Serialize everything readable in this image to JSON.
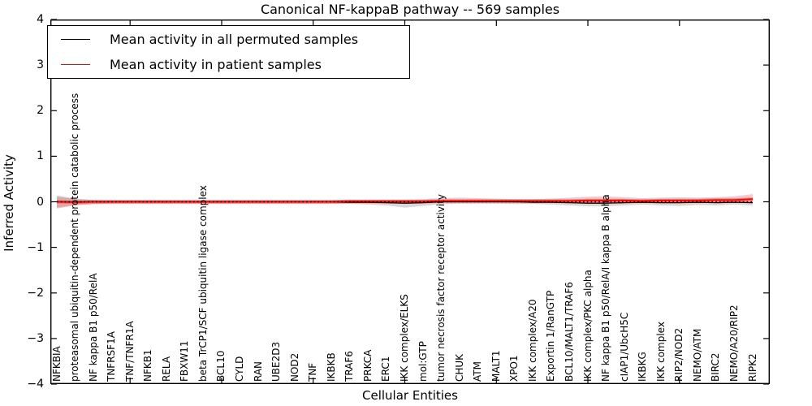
{
  "title": "Canonical NF-kappaB pathway -- 569 samples",
  "axes": {
    "ylabel": "Inferred Activity",
    "xlabel": "Cellular Entities",
    "ytick_labels": [
      "−4",
      "−3",
      "−2",
      "−1",
      "0",
      "1",
      "2",
      "3",
      "4"
    ],
    "ytick_values": [
      -4,
      -3,
      -2,
      -1,
      0,
      1,
      2,
      3,
      4
    ]
  },
  "legend": {
    "items": [
      {
        "label": "Mean activity in all permuted samples",
        "color": "#000000"
      },
      {
        "label": "Mean activity in patient samples",
        "color": "#ff0000"
      }
    ]
  },
  "chart_data": {
    "type": "line",
    "title": "Canonical NF-kappaB pathway -- 569 samples",
    "xlabel": "Cellular Entities",
    "ylabel": "Inferred Activity",
    "ylim": [
      -4,
      4
    ],
    "grid": false,
    "legend_position": "upper left",
    "categories": [
      "NFKBIA",
      "proteasomal ubiquitin-dependent protein catabolic process",
      "NF kappa B1 p50/RelA",
      "TNFRSF1A",
      "TNF/TNFR1A",
      "NFKB1",
      "RELA",
      "FBXW11",
      "beta TrCP1/SCF ubiquitin ligase complex",
      "BCL10",
      "CYLD",
      "RAN",
      "UBE2D3",
      "NOD2",
      "TNF",
      "IKBKB",
      "TRAF6",
      "PRKCA",
      "ERC1",
      "IKK complex/ELKS",
      "mol:GTP",
      "tumor necrosis factor receptor activity",
      "CHUK",
      "ATM",
      "MALT1",
      "XPO1",
      "IKK complex/A20",
      "Exportin 1/RanGTP",
      "BCL10/MALT1/TRAF6",
      "IKK complex/PKC alpha",
      "NF kappa B1 p50/RelA/I kappa B alpha",
      "cIAP1/UbcH5C",
      "IKBKG",
      "IKK complex",
      "RIP2/NOD2",
      "NEMO/ATM",
      "BIRC2",
      "NEMO/A20/RIP2",
      "RIPK2"
    ],
    "xtick_indices": [
      4,
      9,
      14,
      19,
      24,
      29,
      34
    ],
    "zero_line": {
      "y": 0,
      "style": "dotted",
      "color": "#000000"
    },
    "series": [
      {
        "name": "Mean activity in all permuted samples",
        "color": "#000000",
        "band_color": "rgba(110,110,110,0.28)",
        "values": [
          0,
          0,
          0,
          0,
          0,
          0,
          0,
          0,
          0,
          0,
          0,
          0,
          0,
          0,
          0,
          0,
          -0.01,
          -0.01,
          -0.02,
          -0.03,
          -0.02,
          0,
          0,
          0,
          0,
          0,
          -0.01,
          -0.01,
          -0.02,
          -0.03,
          -0.03,
          -0.02,
          -0.01,
          -0.02,
          -0.02,
          -0.01,
          -0.02,
          -0.01,
          -0.02
        ],
        "band_upper": [
          0.14,
          0.07,
          0.04,
          0.03,
          0.03,
          0.03,
          0.03,
          0.03,
          0.03,
          0.03,
          0.03,
          0.03,
          0.03,
          0.03,
          0.03,
          0.03,
          0.03,
          0.03,
          0.03,
          0.03,
          0.03,
          0.03,
          0.03,
          0.03,
          0.03,
          0.03,
          0.03,
          0.03,
          0.03,
          0.03,
          0.03,
          0.03,
          0.03,
          0.03,
          0.03,
          0.03,
          0.03,
          0.03,
          0.03
        ],
        "band_lower": [
          -0.15,
          -0.08,
          -0.05,
          -0.04,
          -0.04,
          -0.04,
          -0.04,
          -0.04,
          -0.04,
          -0.04,
          -0.04,
          -0.04,
          -0.04,
          -0.04,
          -0.04,
          -0.04,
          -0.05,
          -0.06,
          -0.08,
          -0.13,
          -0.09,
          -0.05,
          -0.04,
          -0.04,
          -0.04,
          -0.05,
          -0.05,
          -0.06,
          -0.08,
          -0.1,
          -0.1,
          -0.08,
          -0.06,
          -0.08,
          -0.09,
          -0.07,
          -0.08,
          -0.06,
          -0.08
        ]
      },
      {
        "name": "Mean activity in patient samples",
        "color": "#ff0000",
        "band_color": "rgba(255,0,0,0.22)",
        "inner_band_halfwidth": 0.035,
        "inner_band_color": "rgba(255,0,0,0.35)",
        "values": [
          0,
          -0.01,
          0,
          0,
          0,
          0,
          0,
          0,
          0,
          0,
          0,
          0,
          0,
          0,
          0,
          0,
          0.01,
          0.01,
          0.01,
          0.01,
          0.01,
          0.02,
          0.02,
          0.02,
          0.02,
          0.02,
          0.02,
          0.02,
          0.02,
          0.03,
          0.03,
          0.03,
          0.02,
          0.03,
          0.03,
          0.03,
          0.04,
          0.04,
          0.06
        ],
        "band_upper": [
          0.11,
          0.06,
          0.04,
          0.04,
          0.04,
          0.04,
          0.04,
          0.04,
          0.04,
          0.04,
          0.04,
          0.04,
          0.04,
          0.04,
          0.04,
          0.04,
          0.05,
          0.05,
          0.05,
          0.05,
          0.06,
          0.08,
          0.09,
          0.08,
          0.07,
          0.06,
          0.06,
          0.07,
          0.09,
          0.11,
          0.12,
          0.1,
          0.08,
          0.09,
          0.1,
          0.09,
          0.1,
          0.12,
          0.17
        ],
        "band_lower": [
          -0.13,
          -0.07,
          -0.05,
          -0.04,
          -0.04,
          -0.04,
          -0.04,
          -0.04,
          -0.04,
          -0.04,
          -0.04,
          -0.04,
          -0.04,
          -0.04,
          -0.04,
          -0.04,
          -0.04,
          -0.04,
          -0.04,
          -0.04,
          -0.04,
          -0.03,
          -0.03,
          -0.03,
          -0.03,
          -0.03,
          -0.03,
          -0.03,
          -0.03,
          -0.03,
          -0.03,
          -0.03,
          -0.03,
          -0.03,
          -0.03,
          -0.03,
          -0.02,
          -0.02,
          -0.02
        ]
      }
    ]
  }
}
